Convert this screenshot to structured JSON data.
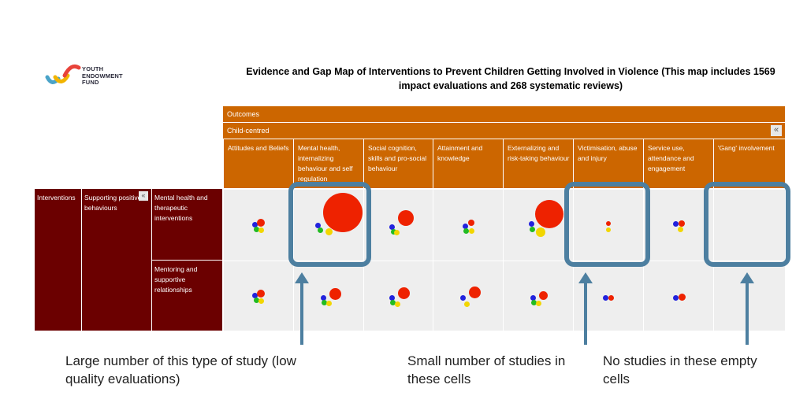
{
  "logo": {
    "text_line1": "YOUTH",
    "text_line2": "ENDOWMENT",
    "text_line3": "FUND"
  },
  "title": "Evidence and Gap Map of Interventions to Prevent Children Getting Involved in Violence (This map includes 1569 impact evaluations and 268 systematic reviews)",
  "outcomes_label": "Outcomes",
  "child_centred_label": "Child-centred",
  "collapse_glyph": "«",
  "columns": [
    "Attitudes and Beliefs",
    "Mental health, internalizing behaviour and self regulation",
    "Social cognition, skills and pro-social behaviour",
    "Attainment and knowledge",
    "Externalizing and risk-taking behaviour",
    "Victimisation, abuse and injury",
    "Service use, attendance and engagement",
    "'Gang' involvement"
  ],
  "row_group": {
    "level1": "Interventions",
    "level2": "Supporting positive behaviours"
  },
  "rows": [
    "Mental health and therapeutic interventions",
    "Mentoring and supportive relationships"
  ],
  "dot_colors": {
    "red": "#ee2200",
    "blue": "#2222dd",
    "green": "#22bb22",
    "yellow": "#f2d600"
  },
  "captions": {
    "large": "Large number of this type of study (low quality evaluations)",
    "small": "Small number of studies in these cells",
    "none": "No studies in these empty cells"
  }
}
